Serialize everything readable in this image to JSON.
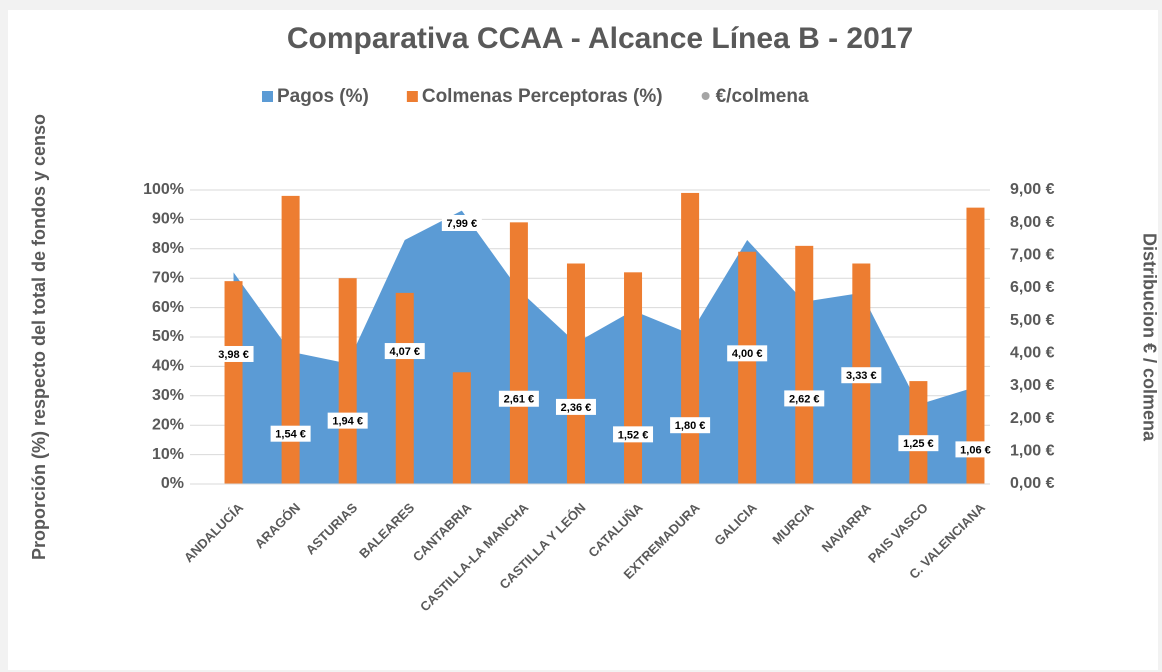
{
  "chart_data": {
    "type": "combo",
    "title": "Comparativa CCAA - Alcance Línea B - 2017",
    "y_label": "Proporción (%) respecto del total de fondos y censo",
    "y2_label": "Distribucion € / colmena",
    "categories": [
      "ANDALUCÍA",
      "ARAGÓN",
      "ASTURIAS",
      "BALEARES",
      "CANTABRIA",
      "CASTILLA-LA MANCHA",
      "CASTILLA Y LEÓN",
      "CATALUÑA",
      "EXTREMADURA",
      "GALICIA",
      "MURCIA",
      "NAVARRA",
      "PAIS VASCO",
      "C. VALENCIANA"
    ],
    "series": [
      {
        "name": "Pagos (%)",
        "type": "area",
        "color": "#5b9bd5",
        "values": [
          72,
          45,
          41,
          83,
          93,
          66,
          48,
          59,
          51,
          83,
          62,
          65,
          27,
          33
        ]
      },
      {
        "name": "Colmenas Perceptoras (%)",
        "type": "bar",
        "color": "#ed7d31",
        "values": [
          69,
          98,
          70,
          65,
          38,
          89,
          75,
          72,
          99,
          79,
          81,
          75,
          35,
          94
        ]
      },
      {
        "name": "€/colmena",
        "type": "label",
        "axis": "y2",
        "color": "#a5a5a5",
        "values": [
          3.98,
          1.54,
          1.94,
          4.07,
          7.99,
          2.61,
          2.36,
          1.52,
          1.8,
          4.0,
          2.62,
          3.33,
          1.25,
          1.06
        ],
        "value_labels": [
          "3,98 €",
          "1,54 €",
          "1,94 €",
          "4,07 €",
          "7,99 €",
          "2,61 €",
          "2,36 €",
          "1,52 €",
          "1,80 €",
          "4,00 €",
          "2,62 €",
          "3,33 €",
          "1,25 €",
          "1,06 €"
        ]
      }
    ],
    "ylim": [
      0,
      100
    ],
    "yticks": [
      {
        "value": 0,
        "label": "0%"
      },
      {
        "value": 10,
        "label": "10%"
      },
      {
        "value": 20,
        "label": "20%"
      },
      {
        "value": 30,
        "label": "30%"
      },
      {
        "value": 40,
        "label": "40%"
      },
      {
        "value": 50,
        "label": "50%"
      },
      {
        "value": 60,
        "label": "60%"
      },
      {
        "value": 70,
        "label": "70%"
      },
      {
        "value": 80,
        "label": "80%"
      },
      {
        "value": 90,
        "label": "90%"
      },
      {
        "value": 100,
        "label": "100%"
      }
    ],
    "y2lim": [
      0,
      9
    ],
    "y2ticks": [
      {
        "value": 0,
        "label": "0,00 €"
      },
      {
        "value": 1,
        "label": "1,00 €"
      },
      {
        "value": 2,
        "label": "2,00 €"
      },
      {
        "value": 3,
        "label": "3,00 €"
      },
      {
        "value": 4,
        "label": "4,00 €"
      },
      {
        "value": 5,
        "label": "5,00 €"
      },
      {
        "value": 6,
        "label": "6,00 €"
      },
      {
        "value": 7,
        "label": "7,00 €"
      },
      {
        "value": 8,
        "label": "8,00 €"
      },
      {
        "value": 9,
        "label": "9,00 €"
      }
    ],
    "grid": true,
    "legend": "top"
  }
}
